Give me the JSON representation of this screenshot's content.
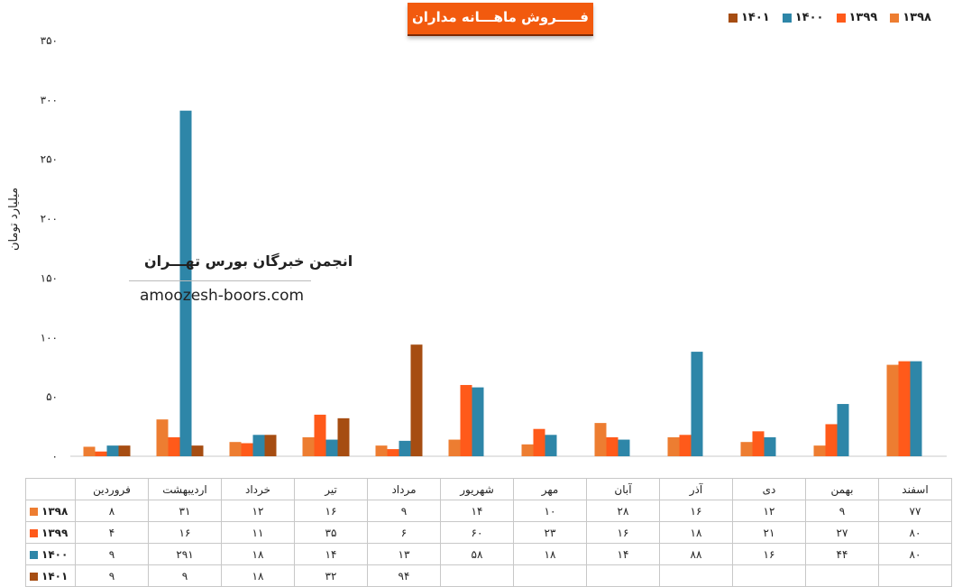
{
  "chart_data": {
    "type": "bar",
    "title": "فـــــروش ماهـــانه مداران",
    "ylabel": "میلیارد تومان",
    "ylim": [
      0,
      350
    ],
    "yticks": [
      0,
      50,
      100,
      150,
      200,
      250,
      300,
      350
    ],
    "ytick_labels": [
      "۰",
      "۵۰",
      "۱۰۰",
      "۱۵۰",
      "۲۰۰",
      "۲۵۰",
      "۳۰۰",
      "۳۵۰"
    ],
    "categories": [
      "فروردین",
      "اردیبهشت",
      "خرداد",
      "تیر",
      "مرداد",
      "شهریور",
      "مهر",
      "آبان",
      "آذر",
      "دی",
      "بهمن",
      "اسفند"
    ],
    "legend_position": "top-right",
    "grid": false,
    "series": [
      {
        "name": "۱۳۹۸",
        "color": "#ed7d31",
        "values": [
          8,
          31,
          12,
          16,
          9,
          14,
          10,
          28,
          16,
          12,
          9,
          77
        ],
        "labels": [
          "۸",
          "۳۱",
          "۱۲",
          "۱۶",
          "۹",
          "۱۴",
          "۱۰",
          "۲۸",
          "۱۶",
          "۱۲",
          "۹",
          "۷۷"
        ]
      },
      {
        "name": "۱۳۹۹",
        "color": "#ff5a1a",
        "values": [
          4,
          16,
          11,
          35,
          6,
          60,
          23,
          16,
          18,
          21,
          27,
          80
        ],
        "labels": [
          "۴",
          "۱۶",
          "۱۱",
          "۳۵",
          "۶",
          "۶۰",
          "۲۳",
          "۱۶",
          "۱۸",
          "۲۱",
          "۲۷",
          "۸۰"
        ]
      },
      {
        "name": "۱۴۰۰",
        "color": "#2e86a8",
        "values": [
          9,
          291,
          18,
          14,
          13,
          58,
          18,
          14,
          88,
          16,
          44,
          80
        ],
        "labels": [
          "۹",
          "۲۹۱",
          "۱۸",
          "۱۴",
          "۱۳",
          "۵۸",
          "۱۸",
          "۱۴",
          "۸۸",
          "۱۶",
          "۴۴",
          "۸۰"
        ]
      },
      {
        "name": "۱۴۰۱",
        "color": "#a64d12",
        "values": [
          9,
          9,
          18,
          32,
          94,
          null,
          null,
          null,
          null,
          null,
          null,
          null
        ],
        "labels": [
          "۹",
          "۹",
          "۱۸",
          "۳۲",
          "۹۴",
          "",
          "",
          "",
          "",
          "",
          "",
          ""
        ]
      }
    ]
  },
  "watermark": {
    "name": "انجمن خبرگان بورس تهـــران",
    "url": "amoozesh-boors.com"
  }
}
